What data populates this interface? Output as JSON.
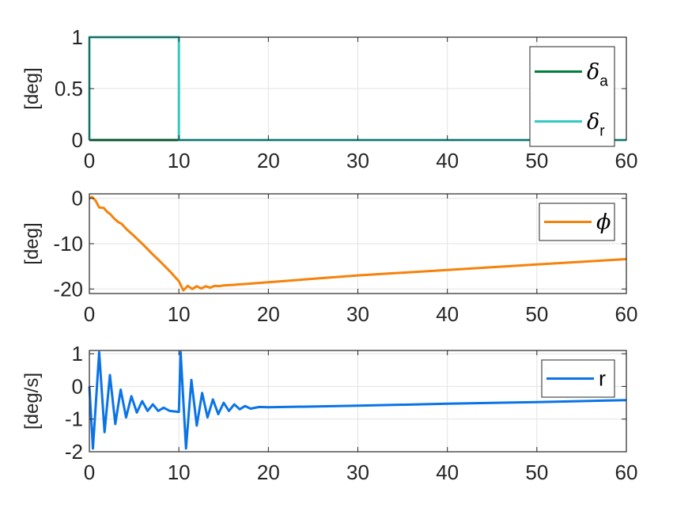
{
  "chart_data": [
    {
      "type": "line",
      "ylabel": "[deg]",
      "xlim": [
        0,
        60
      ],
      "ylim": [
        0,
        1
      ],
      "xticks": [
        0,
        10,
        20,
        30,
        40,
        50,
        60
      ],
      "yticks": [
        0,
        0.5,
        1
      ],
      "grid": true,
      "legend_position": "top-right",
      "series": [
        {
          "name": "δa",
          "symbol": "δ",
          "subscript": "a",
          "color": "#007f3a",
          "points": [
            [
              0,
              0
            ],
            [
              60,
              0
            ]
          ]
        },
        {
          "name": "δr",
          "symbol": "δ",
          "subscript": "r",
          "color": "#33c9be",
          "points": [
            [
              0,
              0
            ],
            [
              0,
              1
            ],
            [
              10,
              1
            ],
            [
              10,
              0
            ],
            [
              60,
              0
            ]
          ]
        }
      ]
    },
    {
      "type": "line",
      "ylabel": "[deg]",
      "xlim": [
        0,
        60
      ],
      "ylim": [
        -21,
        1
      ],
      "xticks": [
        0,
        10,
        20,
        30,
        40,
        50,
        60
      ],
      "yticks": [
        0,
        -10,
        -20
      ],
      "grid": true,
      "legend_position": "top-right",
      "series": [
        {
          "name": "ϕ",
          "symbol": "ϕ",
          "subscript": "",
          "color": "#f5820a",
          "points": [
            [
              0,
              0
            ],
            [
              0.3,
              0.3
            ],
            [
              0.7,
              -0.5
            ],
            [
              1.1,
              -2.0
            ],
            [
              1.6,
              -2.1
            ],
            [
              2.0,
              -3.0
            ],
            [
              2.3,
              -3.4
            ],
            [
              2.8,
              -4.5
            ],
            [
              3.2,
              -5.2
            ],
            [
              3.6,
              -5.6
            ],
            [
              4.1,
              -6.7
            ],
            [
              5,
              -8.3
            ],
            [
              6,
              -10.2
            ],
            [
              7,
              -12.2
            ],
            [
              8,
              -14.1
            ],
            [
              9,
              -16.1
            ],
            [
              10,
              -18.3
            ],
            [
              10.5,
              -20.3
            ],
            [
              11,
              -19.3
            ],
            [
              11.5,
              -20.0
            ],
            [
              12,
              -19.4
            ],
            [
              12.5,
              -19.9
            ],
            [
              13,
              -19.4
            ],
            [
              13.5,
              -19.7
            ],
            [
              14,
              -19.3
            ],
            [
              14.5,
              -19.4
            ],
            [
              15,
              -19.2
            ],
            [
              16,
              -19.1
            ],
            [
              20,
              -18.5
            ],
            [
              30,
              -17.0
            ],
            [
              40,
              -15.8
            ],
            [
              50,
              -14.6
            ],
            [
              60,
              -13.4
            ]
          ]
        }
      ]
    },
    {
      "type": "line",
      "ylabel": "[deg/s]",
      "xlim": [
        0,
        60
      ],
      "ylim": [
        -2,
        1.1
      ],
      "xticks": [
        0,
        10,
        20,
        30,
        40,
        50,
        60
      ],
      "yticks": [
        1,
        0,
        -1,
        -2
      ],
      "grid": true,
      "legend_position": "top-right",
      "series": [
        {
          "name": "r",
          "symbol": "",
          "subscript": "",
          "color": "#0a74e6",
          "points": [
            [
              0,
              0
            ],
            [
              0.4,
              -1.9
            ],
            [
              1.1,
              1.05
            ],
            [
              1.7,
              -1.4
            ],
            [
              2.3,
              0.35
            ],
            [
              2.9,
              -1.15
            ],
            [
              3.5,
              -0.1
            ],
            [
              4.1,
              -0.95
            ],
            [
              4.7,
              -0.3
            ],
            [
              5.3,
              -0.8
            ],
            [
              5.9,
              -0.45
            ],
            [
              6.5,
              -0.75
            ],
            [
              7.1,
              -0.55
            ],
            [
              7.7,
              -0.75
            ],
            [
              8.3,
              -0.65
            ],
            [
              9,
              -0.75
            ],
            [
              10,
              -0.78
            ],
            [
              10.2,
              1.05
            ],
            [
              10.8,
              -1.9
            ],
            [
              11.4,
              0.2
            ],
            [
              12.0,
              -1.2
            ],
            [
              12.6,
              -0.2
            ],
            [
              13.2,
              -0.95
            ],
            [
              13.8,
              -0.4
            ],
            [
              14.4,
              -0.85
            ],
            [
              15.0,
              -0.5
            ],
            [
              15.6,
              -0.75
            ],
            [
              16.2,
              -0.55
            ],
            [
              16.8,
              -0.7
            ],
            [
              17.4,
              -0.6
            ],
            [
              18.0,
              -0.68
            ],
            [
              19,
              -0.63
            ],
            [
              20,
              -0.64
            ],
            [
              30,
              -0.59
            ],
            [
              40,
              -0.53
            ],
            [
              50,
              -0.48
            ],
            [
              60,
              -0.42
            ]
          ]
        }
      ]
    }
  ]
}
